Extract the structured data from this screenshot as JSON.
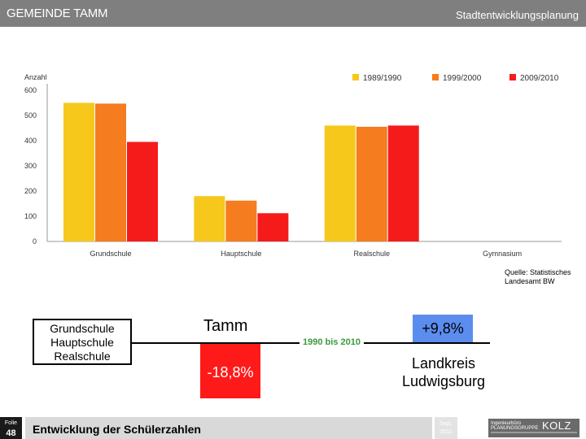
{
  "header": {
    "left_title": "GEMEINDE TAMM",
    "right_title": "Stadtentwicklungsplanung"
  },
  "chart_data": {
    "type": "bar",
    "ylabel": "Anzahl",
    "ylim": [
      0,
      600
    ],
    "yticks": [
      "0",
      "100",
      "200",
      "300",
      "400",
      "500",
      "600"
    ],
    "categories": [
      "Grundschule",
      "Hauptschule",
      "Realschule",
      "Gymnasium"
    ],
    "series": [
      {
        "name": "1989/1990",
        "color": "#f7c81c",
        "values": [
          550,
          180,
          460,
          null
        ]
      },
      {
        "name": "1999/2000",
        "color": "#f57c1f",
        "values": [
          547,
          162,
          455,
          null
        ]
      },
      {
        "name": "2009/2010",
        "color": "#f51b1b",
        "values": [
          395,
          112,
          460,
          null
        ]
      }
    ],
    "legend_position": "top-right",
    "grid": false
  },
  "source": {
    "line1": "Quelle: Statistisches",
    "line2": "Landesamt BW"
  },
  "summary": {
    "school_types": [
      "Grundschule",
      "Hauptschule",
      "Realschule"
    ],
    "period": "1990 bis 2010",
    "tamm_label": "Tamm",
    "tamm_change": "-18,8%",
    "tamm_color": "#ff1a1a",
    "district_change": "+9,8%",
    "district_color": "#5b8def",
    "district_line1": "Landkreis",
    "district_line2": "Ludwigsburg"
  },
  "footer": {
    "folie_label": "Folie",
    "folie_number": "48",
    "title": "Entwicklung der Schülerzahlen",
    "date_line1": "Sept.",
    "date_line2": "2011",
    "logo_left1": "Ingenieurbüro",
    "logo_left2": "PLANUNGSGRUPPE",
    "logo_main": "KOLZ"
  }
}
